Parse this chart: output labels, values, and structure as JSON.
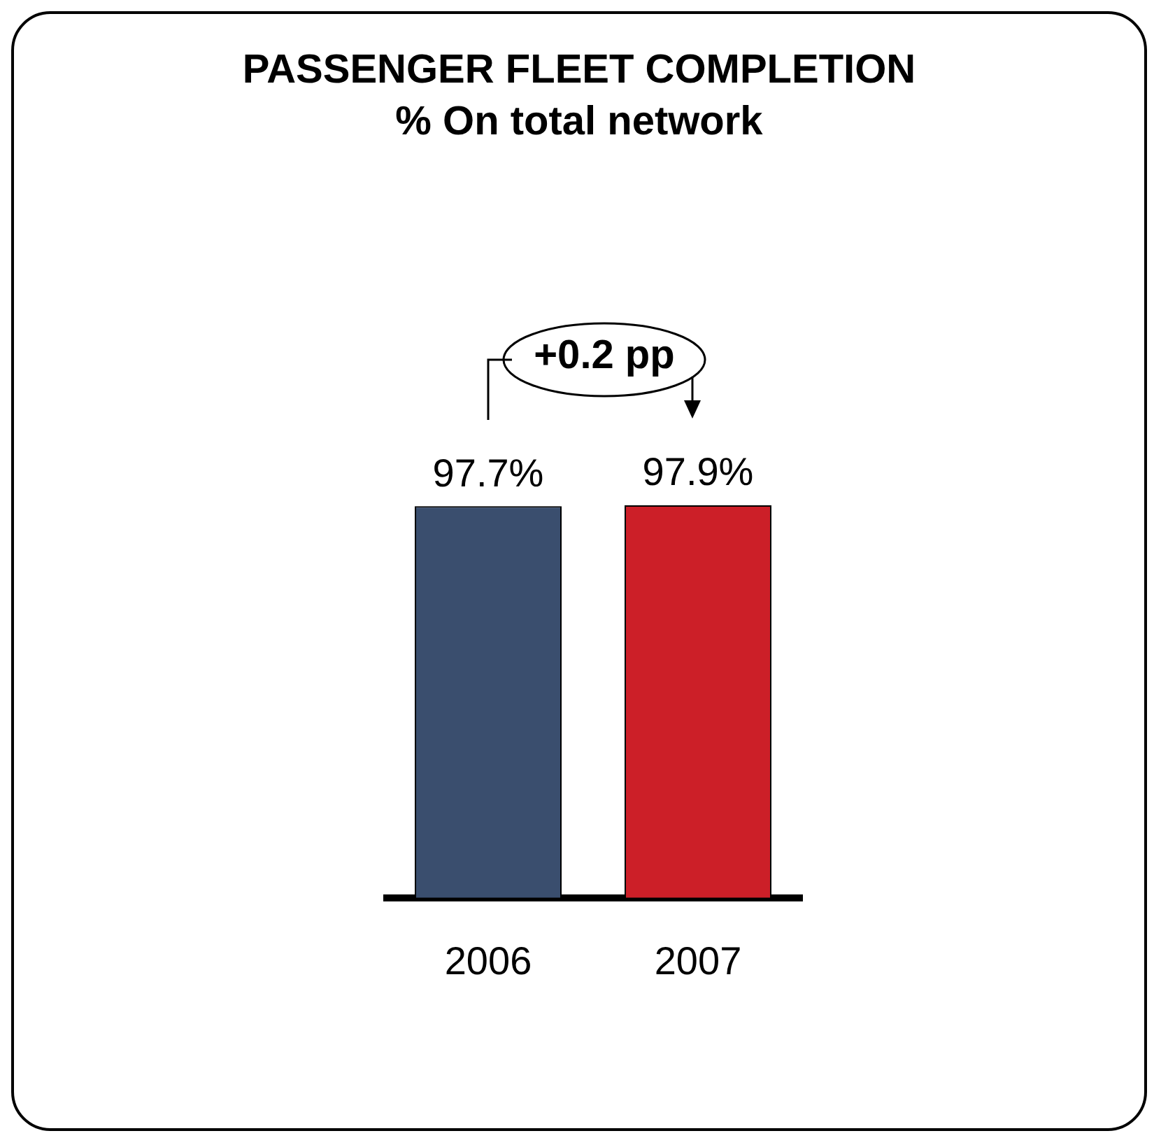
{
  "chart_data": {
    "type": "bar",
    "title": "PASSENGER FLEET COMPLETION",
    "subtitle": "% On total network",
    "categories": [
      "2006",
      "2007"
    ],
    "values": [
      97.7,
      97.9
    ],
    "colors": [
      "#3a4e6e",
      "#cc1f28"
    ],
    "value_labels": [
      "97.7%",
      "97.9%"
    ],
    "annotations": [
      "+0.2 pp"
    ]
  }
}
